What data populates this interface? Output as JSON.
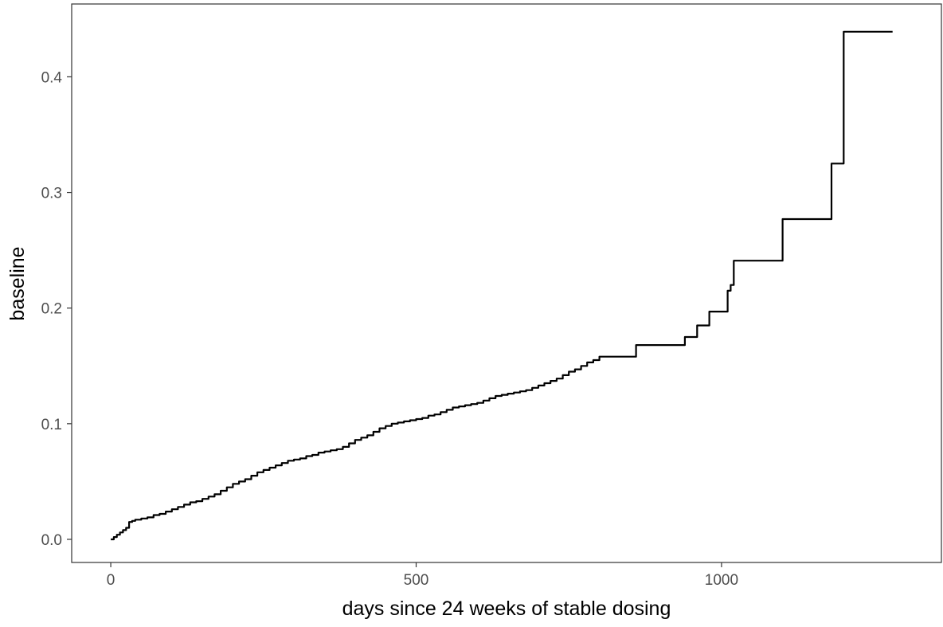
{
  "chart_data": {
    "type": "line",
    "line_style": "step",
    "xlabel": "days since 24 weeks of stable dosing",
    "ylabel": "baseline",
    "xlim": [
      -64,
      1360
    ],
    "ylim": [
      -0.02,
      0.463
    ],
    "x_ticks": [
      0,
      500,
      1000
    ],
    "x_tick_labels": [
      "0",
      "500",
      "1000"
    ],
    "y_ticks": [
      0.0,
      0.1,
      0.2,
      0.3,
      0.4
    ],
    "y_tick_labels": [
      "0.0",
      "0.1",
      "0.2",
      "0.3",
      "0.4"
    ],
    "grid": false,
    "legend": "none",
    "colors": {
      "line": "#000000",
      "panel_border": "#333333",
      "tick_label": "#4d4d4d",
      "background": "#ffffff"
    },
    "series": [
      {
        "x": [
          0,
          5,
          10,
          15,
          20,
          25,
          30,
          35,
          40,
          50,
          60,
          70,
          80,
          90,
          100,
          110,
          120,
          130,
          140,
          150,
          160,
          170,
          180,
          190,
          200,
          210,
          220,
          230,
          240,
          250,
          260,
          270,
          280,
          290,
          300,
          310,
          320,
          330,
          340,
          350,
          360,
          370,
          380,
          390,
          400,
          410,
          420,
          430,
          440,
          450,
          460,
          470,
          480,
          490,
          500,
          510,
          520,
          530,
          540,
          550,
          560,
          570,
          580,
          590,
          600,
          610,
          620,
          630,
          640,
          650,
          660,
          670,
          680,
          690,
          700,
          710,
          720,
          730,
          740,
          750,
          760,
          770,
          780,
          790,
          800,
          820,
          840,
          860,
          880,
          900,
          920,
          940,
          960,
          970,
          980,
          1000,
          1010,
          1015,
          1020,
          1040,
          1060,
          1080,
          1100,
          1140,
          1180,
          1200,
          1240,
          1280
        ],
        "y": [
          0.0,
          0.002,
          0.004,
          0.006,
          0.008,
          0.01,
          0.015,
          0.016,
          0.017,
          0.018,
          0.019,
          0.021,
          0.022,
          0.024,
          0.026,
          0.028,
          0.03,
          0.032,
          0.033,
          0.035,
          0.037,
          0.039,
          0.042,
          0.045,
          0.048,
          0.05,
          0.052,
          0.055,
          0.058,
          0.06,
          0.062,
          0.064,
          0.066,
          0.068,
          0.069,
          0.07,
          0.072,
          0.073,
          0.075,
          0.076,
          0.077,
          0.078,
          0.08,
          0.083,
          0.086,
          0.088,
          0.09,
          0.093,
          0.096,
          0.098,
          0.1,
          0.101,
          0.102,
          0.103,
          0.104,
          0.105,
          0.107,
          0.108,
          0.11,
          0.112,
          0.114,
          0.115,
          0.116,
          0.117,
          0.118,
          0.12,
          0.122,
          0.124,
          0.125,
          0.126,
          0.127,
          0.128,
          0.129,
          0.131,
          0.133,
          0.135,
          0.137,
          0.139,
          0.142,
          0.145,
          0.147,
          0.15,
          0.153,
          0.155,
          0.158,
          0.158,
          0.158,
          0.168,
          0.168,
          0.168,
          0.168,
          0.175,
          0.185,
          0.185,
          0.197,
          0.197,
          0.215,
          0.22,
          0.241,
          0.241,
          0.241,
          0.241,
          0.277,
          0.277,
          0.325,
          0.439,
          0.439,
          0.439
        ]
      }
    ]
  }
}
